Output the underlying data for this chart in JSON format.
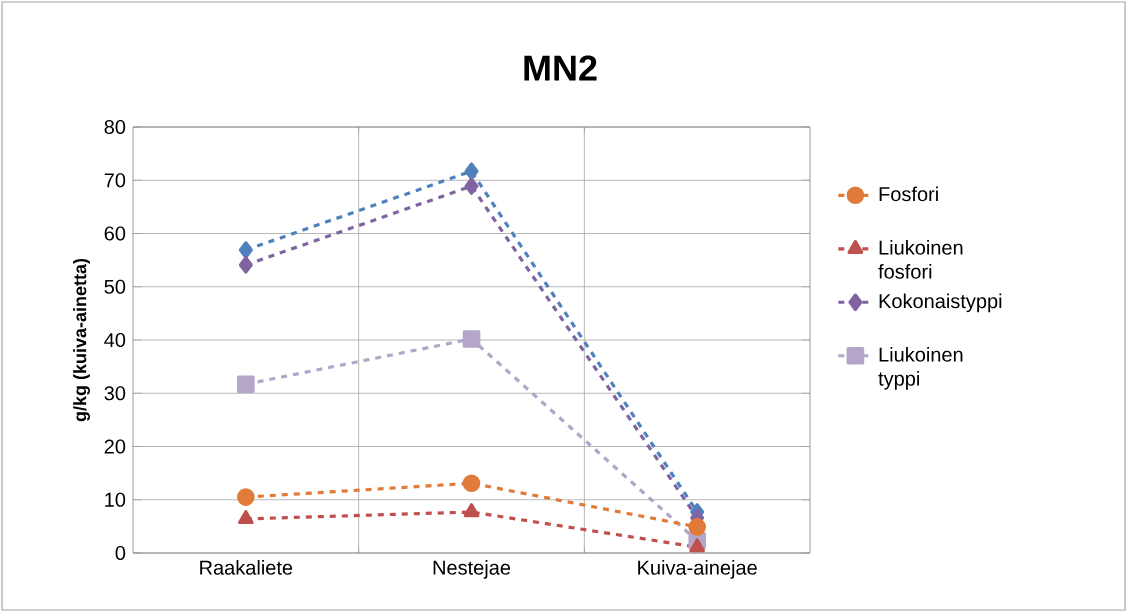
{
  "chart_data": {
    "type": "line",
    "title": "MN2",
    "ylabel": "g/kg (kuiva-ainetta)",
    "categories": [
      "Raakaliete",
      "Nestejae",
      "Kuiva-ainejae"
    ],
    "ylim": [
      0,
      80
    ],
    "yticks": [
      0,
      10,
      20,
      30,
      40,
      50,
      60,
      70,
      80
    ],
    "grid": true,
    "legend": "right",
    "line_style": "dashed",
    "series": [
      {
        "name": "Fosfori",
        "color": "#e07b39",
        "marker": "circle",
        "values": [
          10.5,
          13.1,
          4.9
        ]
      },
      {
        "name": "Liukoinen fosfori",
        "color": "#c0504d",
        "marker": "triangle",
        "values": [
          6.4,
          7.7,
          1.1
        ]
      },
      {
        "name": "Kokonaistyppi",
        "color": "#8064a2",
        "marker": "diamond",
        "values": [
          54.1,
          68.9,
          6.6
        ]
      },
      {
        "name": "Liukoinen typpi",
        "color": "#b3a6c9",
        "marker": "square",
        "values": [
          31.7,
          40.2,
          2.3
        ]
      },
      {
        "color": "#4f81bd",
        "marker": "diamond",
        "values": [
          56.9,
          71.7,
          7.7
        ]
      }
    ]
  }
}
